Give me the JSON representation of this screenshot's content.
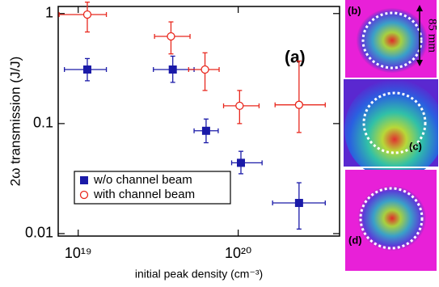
{
  "chart_data": {
    "type": "scatter",
    "ylabel": "2ω transmission (J/J)",
    "xlabel": "initial peak density (cm⁻³)",
    "annotation": "(a)",
    "log_x": true,
    "log_y": true,
    "xlim": [
      7.5e+18,
      4.3e+20
    ],
    "ylim": [
      0.0095,
      1.16
    ],
    "xticks": [
      {
        "value": 1e+19,
        "label": "10¹⁹"
      },
      {
        "value": 1e+20,
        "label": "10²⁰"
      }
    ],
    "yticks": [
      {
        "value": 0.01,
        "label": "0.01"
      },
      0.1,
      1
    ],
    "legend": "lower left",
    "series": [
      {
        "name": "w/o channel beam",
        "color": "#1a1aa8",
        "marker": "square",
        "x": [
          1.14e+19,
          3.9e+19,
          6.3e+19,
          1.04e+20,
          2.4e+20
        ],
        "xlow": [
          8.2e+18,
          2.95e+19,
          5.3e+19,
          9.1e+19,
          1.64e+20
        ],
        "xhigh": [
          1.5e+19,
          5.3e+19,
          7.5e+19,
          1.41e+20,
          3.5e+20
        ],
        "values": [
          0.31,
          0.31,
          0.086,
          0.044,
          0.019
        ],
        "ylow": [
          0.245,
          0.237,
          0.067,
          0.035,
          0.011
        ],
        "yhigh": [
          0.39,
          0.41,
          0.11,
          0.056,
          0.029
        ]
      },
      {
        "name": "with channel beam",
        "color": "#e8281e",
        "marker": "circle",
        "x": [
          1.14e+19,
          3.8e+19,
          6.2e+19,
          1.02e+20,
          2.4e+20
        ],
        "xlow": [
          7.6e+18,
          3e+19,
          4.9e+19,
          8.1e+19,
          1.7e+20
        ],
        "xhigh": [
          1.5e+19,
          5e+19,
          7.6e+19,
          1.35e+20,
          3.5e+20
        ],
        "values": [
          0.98,
          0.62,
          0.31,
          0.145,
          0.148
        ],
        "ylow": [
          0.68,
          0.43,
          0.2,
          0.1,
          0.083
        ],
        "yhigh": [
          1.27,
          0.84,
          0.44,
          0.2,
          0.37
        ]
      }
    ]
  },
  "panels": [
    {
      "label": "(b)",
      "scale": "85 mm"
    },
    {
      "label": "(c)"
    },
    {
      "label": "(d)"
    }
  ]
}
